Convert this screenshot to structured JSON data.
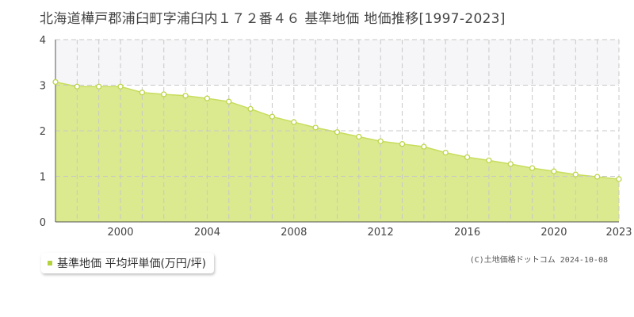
{
  "title": "北海道樺戸郡浦臼町字浦臼内１７２番４６ 基準地価 地価推移[1997-2023]",
  "colors": {
    "area_fill": "#dbea8f",
    "area_line": "#c7dd5c",
    "point_stroke": "#bcd64a",
    "point_fill": "#ffffff",
    "grid": "#c8c8c8",
    "band_fill": "#f6f6f8",
    "legend_swatch": "#b4d23c"
  },
  "legend": {
    "label": "基準地価 平均坪単価(万円/坪)"
  },
  "credit": "(C)土地価格ドットコム 2024-10-08",
  "chart_data": {
    "type": "area",
    "title": "北海道樺戸郡浦臼町字浦臼内１７２番４６ 基準地価 地価推移[1997-2023]",
    "xlabel": "",
    "ylabel": "",
    "xlim": [
      1997,
      2023
    ],
    "ylim": [
      0,
      4
    ],
    "x_ticks": [
      2000,
      2004,
      2008,
      2012,
      2016,
      2020,
      2023
    ],
    "y_ticks": [
      0,
      1,
      2,
      3,
      4
    ],
    "grid": true,
    "legend_position": "bottom-left",
    "series": [
      {
        "name": "基準地価 平均坪単価(万円/坪)",
        "x": [
          1997,
          1998,
          1999,
          2000,
          2001,
          2002,
          2003,
          2004,
          2005,
          2006,
          2007,
          2008,
          2009,
          2010,
          2011,
          2012,
          2013,
          2014,
          2015,
          2016,
          2017,
          2018,
          2019,
          2020,
          2021,
          2022,
          2023
        ],
        "y": [
          3.07,
          2.97,
          2.97,
          2.97,
          2.84,
          2.8,
          2.77,
          2.71,
          2.64,
          2.48,
          2.31,
          2.19,
          2.07,
          1.97,
          1.87,
          1.77,
          1.71,
          1.65,
          1.52,
          1.42,
          1.35,
          1.27,
          1.18,
          1.11,
          1.04,
          0.99,
          0.94
        ]
      }
    ]
  }
}
